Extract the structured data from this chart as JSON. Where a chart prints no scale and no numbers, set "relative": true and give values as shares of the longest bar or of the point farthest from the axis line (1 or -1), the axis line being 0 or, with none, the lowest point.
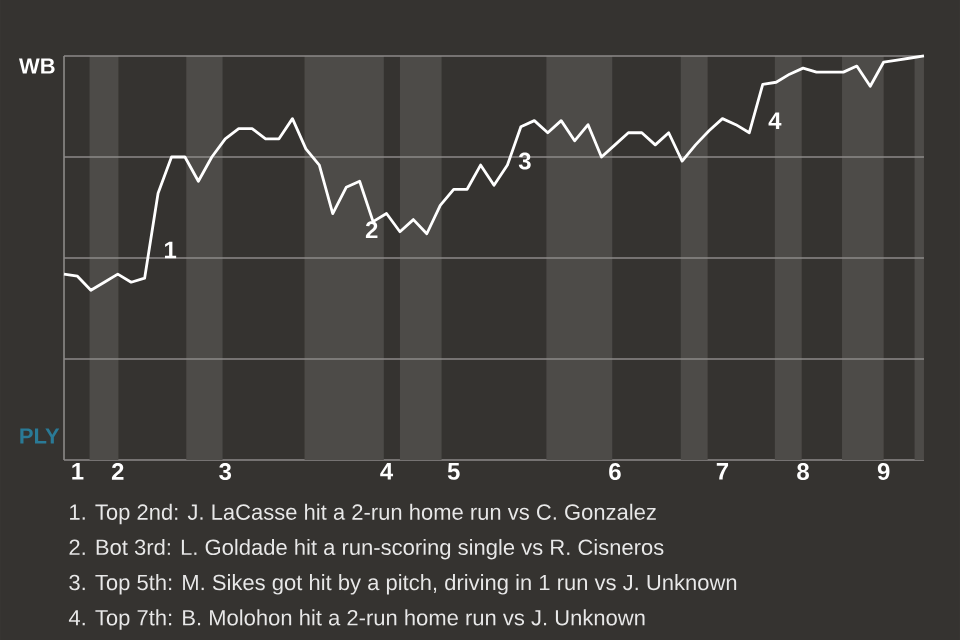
{
  "chart_data": {
    "type": "line",
    "relative": true,
    "categories": [
      null,
      "1",
      null,
      null,
      "2",
      null,
      null,
      null,
      null,
      null,
      null,
      null,
      "3",
      null,
      null,
      null,
      null,
      null,
      null,
      null,
      null,
      null,
      null,
      null,
      "4",
      null,
      null,
      null,
      null,
      "5",
      null,
      null,
      null,
      null,
      null,
      null,
      null,
      null,
      null,
      null,
      null,
      "6",
      null,
      null,
      null,
      null,
      null,
      null,
      null,
      "7",
      null,
      null,
      null,
      null,
      null,
      "8",
      null,
      null,
      null,
      null,
      null,
      "9",
      null,
      null,
      null
    ],
    "series": [
      {
        "color": "#ffffff",
        "values": [
          0.46,
          0.455,
          0.42,
          0.44,
          0.46,
          0.44,
          0.45,
          0.66,
          0.75,
          0.75,
          0.69,
          0.75,
          0.795,
          0.82,
          0.82,
          0.795,
          0.795,
          0.845,
          0.77,
          0.73,
          0.61,
          0.675,
          0.69,
          0.59,
          0.61,
          0.565,
          0.595,
          0.56,
          0.63,
          0.67,
          0.67,
          0.73,
          0.68,
          0.73,
          0.825,
          0.84,
          0.81,
          0.84,
          0.79,
          0.83,
          0.75,
          0.78,
          0.81,
          0.81,
          0.78,
          0.81,
          0.74,
          0.78,
          0.815,
          0.845,
          0.83,
          0.81,
          0.93,
          0.935,
          0.955,
          0.97,
          0.96,
          0.96,
          0.96,
          0.975,
          0.925,
          0.985,
          0.99,
          0.995,
          1
        ]
      }
    ],
    "grid": "y",
    "marker": "none",
    "line_style": "solid",
    "annotations": [
      "WB",
      "PLY",
      "1",
      "2",
      "3",
      "4",
      "1. Top 2nd: J. LaCasse hit a 2-run home run vs C. Gonzalez",
      "2. Bot 3rd: L. Goldade hit a run-scoring single vs R. Cisneros",
      "3. Top 5th: M. Sikes got hit by a pitch, driving in 1 run vs J. Unknown",
      "4. Top 7th: B. Molohon hit a 2-run home run vs J. Unknown"
    ]
  }
}
